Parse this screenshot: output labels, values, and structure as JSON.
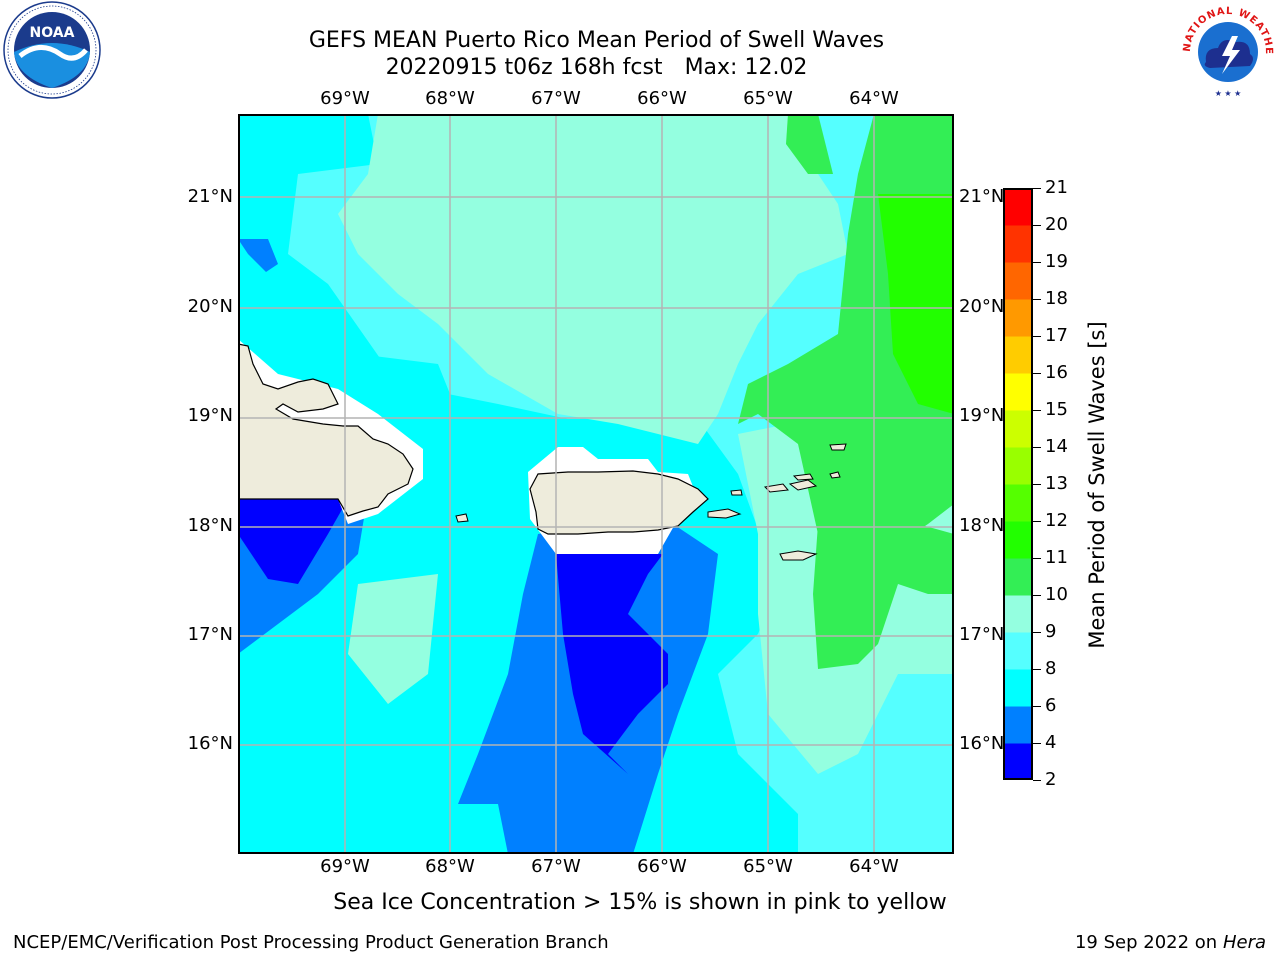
{
  "title": {
    "line1": "GEFS MEAN Puerto Rico Mean Period of Swell Waves",
    "run": "20220915 t06z 168h fcst",
    "max": "Max: 12.02"
  },
  "logos": {
    "left": {
      "name": "noaa-logo",
      "text": "NOAA",
      "ring_text": "NATIONAL OCEANIC AND ATMOSPHERIC ADMINISTRATION · U.S. DEPARTMENT OF COMMERCE"
    },
    "right": {
      "name": "nws-logo",
      "ring_text": "NATIONAL WEATHER SERVICE"
    }
  },
  "map": {
    "longitude_labels": [
      "69°W",
      "68°W",
      "67°W",
      "66°W",
      "65°W",
      "64°W"
    ],
    "latitude_labels": [
      "21°N",
      "20°N",
      "19°N",
      "18°N",
      "17°N",
      "16°N"
    ],
    "land_color": "#eeecdc",
    "grid_color": "#b4b4b4"
  },
  "colorbar": {
    "title": "Mean Period of Swell Waves [s]",
    "tick_labels": [
      "2",
      "4",
      "6",
      "8",
      "9",
      "10",
      "11",
      "12",
      "13",
      "14",
      "15",
      "16",
      "17",
      "18",
      "19",
      "20",
      "21"
    ],
    "colors": [
      "#0000ff",
      "#0080ff",
      "#00ffff",
      "#55ffff",
      "#94ffe0",
      "#33ee55",
      "#22ff00",
      "#55ff00",
      "#99ff00",
      "#ccff00",
      "#ffff00",
      "#ffcc00",
      "#ff9900",
      "#ff6600",
      "#ff3300",
      "#ff0000"
    ]
  },
  "note": "Sea Ice Concentration > 15% is shown in pink to yellow",
  "footer": {
    "left": "NCEP/EMC/Verification Post Processing Product Generation Branch",
    "right_prefix": "19 Sep 2022 on",
    "right_machine": "Hera"
  }
}
